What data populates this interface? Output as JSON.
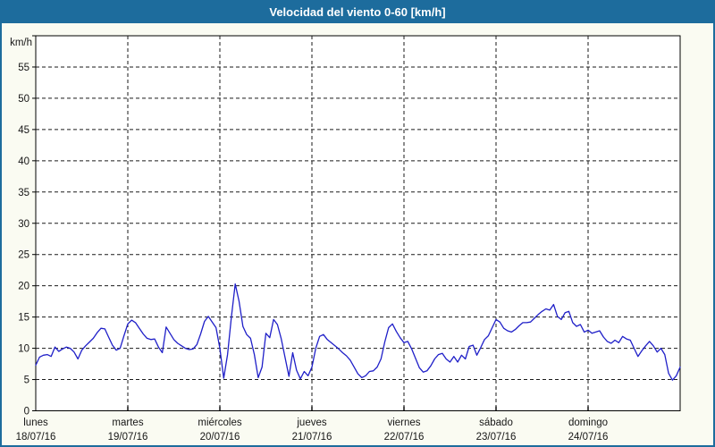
{
  "window": {
    "title": "Velocidad del viento 0-60 [km/h]"
  },
  "colors": {
    "titlebar_bg": "#1d6c9d",
    "frame_border": "#1d6c9d",
    "page_bg": "#fafbf2",
    "plot_bg": "#ffffff",
    "axis": "#000000",
    "grid": "#1a1a1a",
    "line": "#1f1fc8",
    "label_text": "#161616"
  },
  "chart_data": {
    "type": "line",
    "title": "Velocidad del viento 0-60 [km/h]",
    "ylabel": "km/h",
    "ylim": [
      0,
      60
    ],
    "ytick_step": 5,
    "ytick_labels": [
      "0",
      "5",
      "10",
      "15",
      "20",
      "25",
      "30",
      "35",
      "40",
      "45",
      "50",
      "55"
    ],
    "yunit_label": "km/h",
    "grid": "dashed",
    "legend": "none",
    "x_unit": "hours",
    "x_total_hours": 168,
    "days": [
      {
        "name": "lunes",
        "date": "18/07/16"
      },
      {
        "name": "martes",
        "date": "19/07/16"
      },
      {
        "name": "miércoles",
        "date": "20/07/16"
      },
      {
        "name": "jueves",
        "date": "21/07/16"
      },
      {
        "name": "viernes",
        "date": "22/07/16"
      },
      {
        "name": "sábado",
        "date": "23/07/16"
      },
      {
        "name": "domingo",
        "date": "24/07/16"
      }
    ],
    "series": [
      {
        "name": "Velocidad del viento",
        "unit": "km/h",
        "values": [
          7.3,
          8.6,
          8.9,
          9.0,
          8.7,
          10.2,
          9.5,
          9.9,
          10.2,
          10.0,
          9.4,
          8.3,
          9.7,
          10.4,
          11.0,
          11.6,
          12.5,
          13.2,
          13.1,
          11.8,
          10.5,
          9.7,
          10.0,
          12.0,
          13.9,
          14.5,
          14.1,
          13.2,
          12.3,
          11.6,
          11.4,
          11.5,
          10.2,
          9.3,
          13.4,
          12.4,
          11.4,
          10.8,
          10.4,
          10.0,
          9.8,
          9.9,
          10.6,
          12.3,
          14.3,
          15.1,
          14.2,
          13.3,
          10.0,
          5.2,
          9.0,
          15.0,
          20.3,
          17.5,
          13.5,
          12.2,
          11.6,
          9.0,
          5.3,
          7.0,
          12.4,
          11.7,
          14.6,
          13.8,
          11.5,
          8.5,
          5.5,
          9.3,
          6.5,
          5.1,
          6.3,
          5.6,
          7.0,
          10.0,
          11.9,
          12.2,
          11.4,
          10.9,
          10.4,
          9.9,
          9.3,
          8.8,
          8.1,
          7.0,
          5.9,
          5.3,
          5.6,
          6.3,
          6.4,
          7.0,
          8.3,
          11.0,
          13.3,
          13.9,
          12.7,
          11.7,
          10.9,
          11.1,
          9.9,
          8.4,
          6.9,
          6.2,
          6.4,
          7.2,
          8.3,
          9.0,
          9.2,
          8.3,
          7.8,
          8.7,
          7.8,
          8.9,
          8.3,
          10.3,
          10.5,
          8.9,
          10.1,
          11.4,
          12.0,
          13.3,
          14.6,
          14.2,
          13.2,
          12.8,
          12.6,
          13.0,
          13.6,
          14.1,
          14.1,
          14.2,
          14.8,
          15.4,
          15.9,
          16.3,
          16.1,
          17.0,
          15.1,
          14.6,
          15.7,
          15.9,
          14.1,
          13.5,
          13.8,
          12.6,
          12.9,
          12.4,
          12.6,
          12.8,
          11.8,
          11.1,
          10.8,
          11.3,
          10.9,
          11.9,
          11.5,
          11.3,
          10.0,
          8.7,
          9.6,
          10.4,
          11.1,
          10.4,
          9.4,
          10.0,
          9.0,
          6.0,
          4.9,
          5.6,
          7.0
        ]
      }
    ]
  }
}
